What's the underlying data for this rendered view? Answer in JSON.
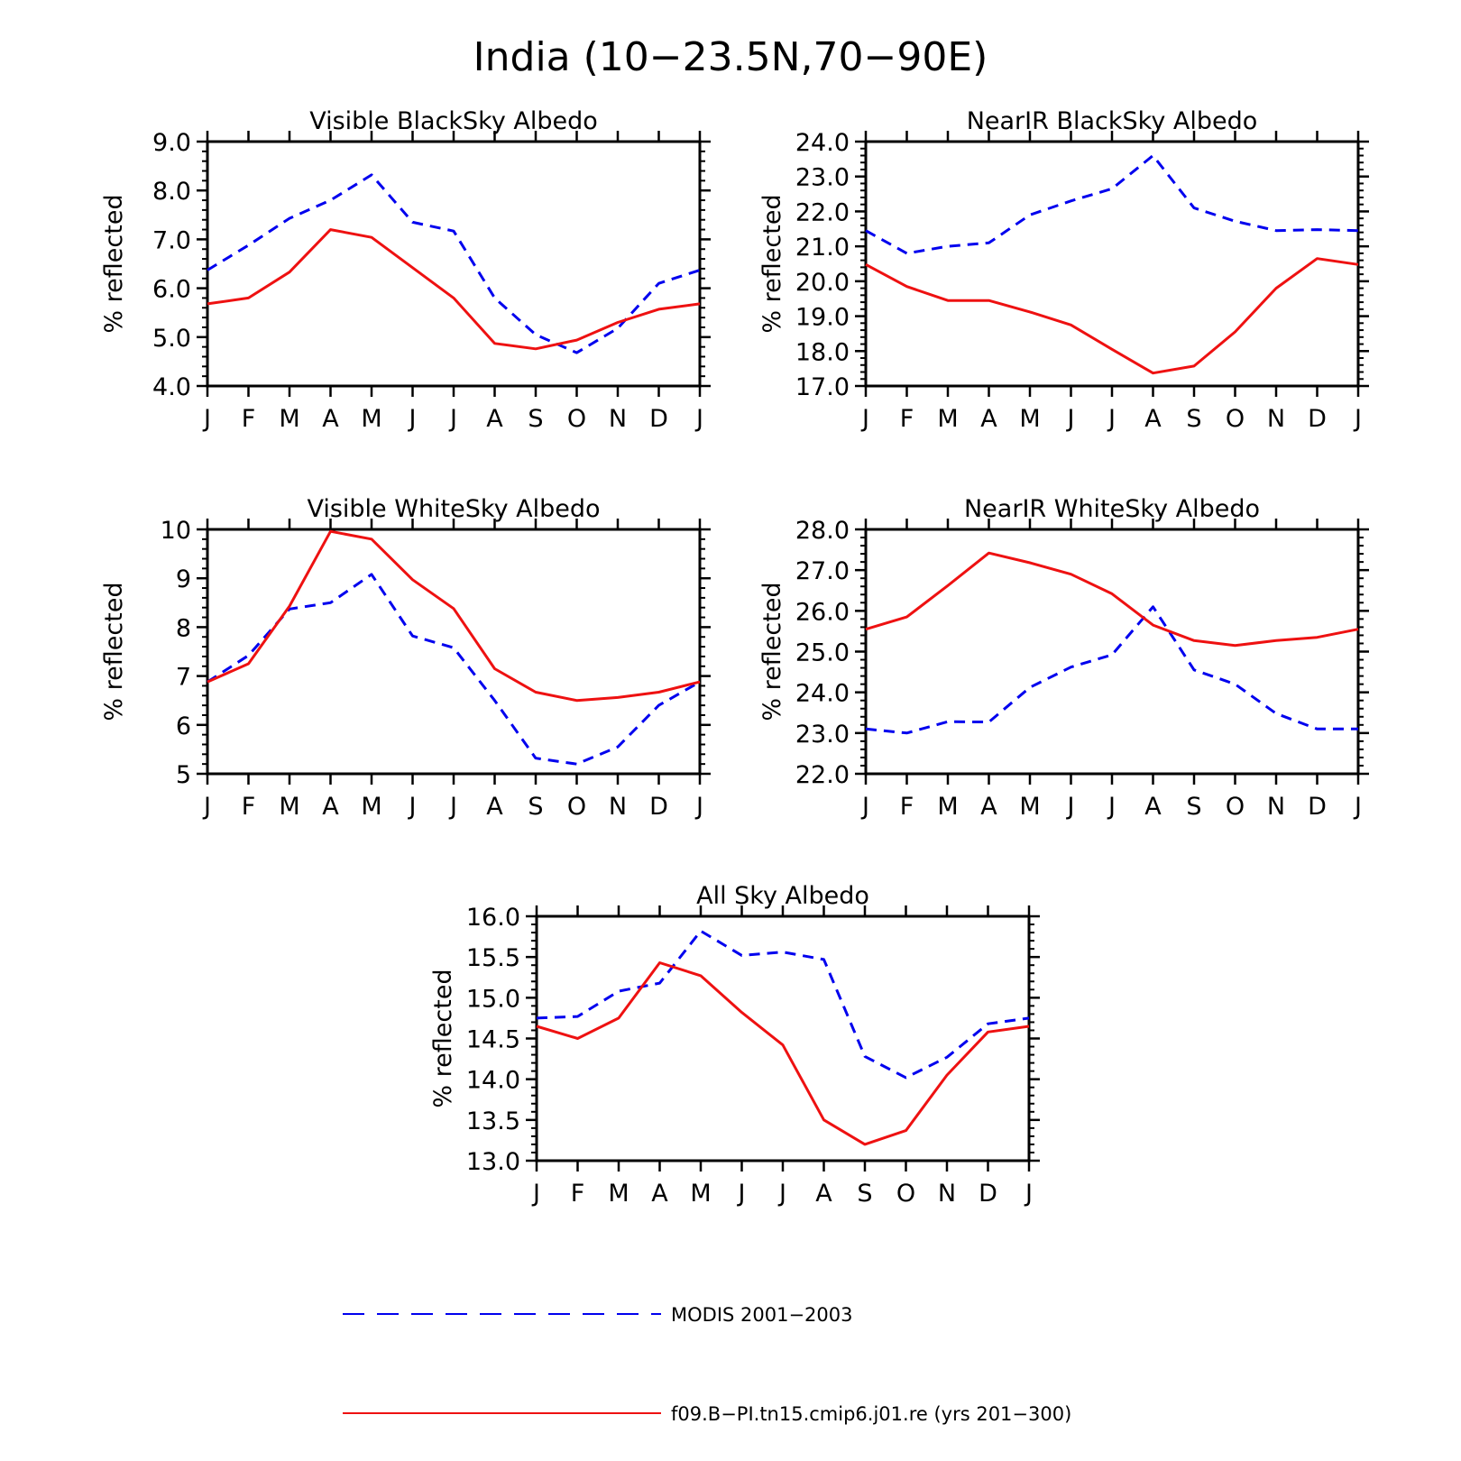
{
  "figure": {
    "title": "India (10−23.5N,70−90E)"
  },
  "series_styles": [
    {
      "color": "#0000ee",
      "dash": "dashed"
    },
    {
      "color": "#ee1111",
      "dash": "solid"
    }
  ],
  "legend": [
    {
      "label": "MODIS 2001−2003"
    },
    {
      "label": "f09.B−PI.tn15.cmip6.j01.re (yrs 201−300)"
    }
  ],
  "chart_data": [
    {
      "type": "line",
      "title": "Visible BlackSky Albedo",
      "ylabel": "% reflected",
      "categories": [
        "J",
        "F",
        "M",
        "A",
        "M",
        "J",
        "J",
        "A",
        "S",
        "O",
        "N",
        "D",
        "J"
      ],
      "ylim": [
        4.0,
        9.0
      ],
      "yticks": [
        4.0,
        5.0,
        6.0,
        7.0,
        8.0,
        9.0
      ],
      "ytick_labels": [
        "4.0",
        "5.0",
        "6.0",
        "7.0",
        "8.0",
        "9.0"
      ],
      "series": [
        {
          "values": [
            6.37,
            6.88,
            7.43,
            7.8,
            8.32,
            7.35,
            7.17,
            5.8,
            5.05,
            4.68,
            5.18,
            6.1,
            6.37
          ]
        },
        {
          "values": [
            5.68,
            5.8,
            6.33,
            7.2,
            7.04,
            6.42,
            5.8,
            4.87,
            4.76,
            4.94,
            5.3,
            5.57,
            5.68
          ]
        }
      ]
    },
    {
      "type": "line",
      "title": "NearIR BlackSky Albedo",
      "ylabel": "% reflected",
      "categories": [
        "J",
        "F",
        "M",
        "A",
        "M",
        "J",
        "J",
        "A",
        "S",
        "O",
        "N",
        "D",
        "J"
      ],
      "ylim": [
        17.0,
        24.0
      ],
      "yticks": [
        17.0,
        18.0,
        19.0,
        20.0,
        21.0,
        22.0,
        23.0,
        24.0
      ],
      "ytick_labels": [
        "17.0",
        "18.0",
        "19.0",
        "20.0",
        "21.0",
        "22.0",
        "23.0",
        "24.0"
      ],
      "series": [
        {
          "values": [
            21.45,
            20.8,
            21.0,
            21.1,
            21.9,
            22.3,
            22.65,
            23.6,
            22.1,
            21.72,
            21.45,
            21.48,
            21.45
          ]
        },
        {
          "values": [
            20.48,
            19.85,
            19.45,
            19.45,
            19.12,
            18.75,
            18.05,
            17.37,
            17.57,
            18.55,
            19.8,
            20.65,
            20.48
          ]
        }
      ]
    },
    {
      "type": "line",
      "title": "Visible WhiteSky Albedo",
      "ylabel": "% reflected",
      "categories": [
        "J",
        "F",
        "M",
        "A",
        "M",
        "J",
        "J",
        "A",
        "S",
        "O",
        "N",
        "D",
        "J"
      ],
      "ylim": [
        5,
        10
      ],
      "yticks": [
        5,
        6,
        7,
        8,
        9,
        10
      ],
      "ytick_labels": [
        "5",
        "6",
        "7",
        "8",
        "9",
        "10"
      ],
      "series": [
        {
          "values": [
            6.88,
            7.42,
            8.37,
            8.5,
            9.08,
            7.82,
            7.58,
            6.5,
            5.32,
            5.2,
            5.55,
            6.4,
            6.88
          ]
        },
        {
          "values": [
            6.88,
            7.25,
            8.43,
            9.96,
            9.8,
            8.97,
            8.38,
            7.15,
            6.67,
            6.5,
            6.56,
            6.67,
            6.88
          ]
        }
      ]
    },
    {
      "type": "line",
      "title": "NearIR WhiteSky Albedo",
      "ylabel": "% reflected",
      "categories": [
        "J",
        "F",
        "M",
        "A",
        "M",
        "J",
        "J",
        "A",
        "S",
        "O",
        "N",
        "D",
        "J"
      ],
      "ylim": [
        22.0,
        28.0
      ],
      "yticks": [
        22.0,
        23.0,
        24.0,
        25.0,
        26.0,
        27.0,
        28.0
      ],
      "ytick_labels": [
        "22.0",
        "23.0",
        "24.0",
        "25.0",
        "26.0",
        "27.0",
        "28.0"
      ],
      "series": [
        {
          "values": [
            23.1,
            23.0,
            23.28,
            23.27,
            24.12,
            24.62,
            24.92,
            26.1,
            24.55,
            24.2,
            23.48,
            23.1,
            23.1
          ]
        },
        {
          "values": [
            25.55,
            25.85,
            26.62,
            27.42,
            27.18,
            26.9,
            26.42,
            25.65,
            25.27,
            25.15,
            25.27,
            25.35,
            25.55
          ]
        }
      ]
    },
    {
      "type": "line",
      "title": "All Sky Albedo",
      "ylabel": "% reflected",
      "categories": [
        "J",
        "F",
        "M",
        "A",
        "M",
        "J",
        "J",
        "A",
        "S",
        "O",
        "N",
        "D",
        "J"
      ],
      "ylim": [
        13.0,
        16.0
      ],
      "yticks": [
        13.0,
        13.5,
        14.0,
        14.5,
        15.0,
        15.5,
        16.0
      ],
      "ytick_labels": [
        "13.0",
        "13.5",
        "14.0",
        "14.5",
        "15.0",
        "15.5",
        "16.0"
      ],
      "series": [
        {
          "values": [
            14.75,
            14.77,
            15.08,
            15.18,
            15.82,
            15.52,
            15.56,
            15.47,
            14.28,
            14.02,
            14.27,
            14.68,
            14.75
          ]
        },
        {
          "values": [
            14.65,
            14.5,
            14.75,
            15.43,
            15.27,
            14.82,
            14.42,
            13.5,
            13.2,
            13.37,
            14.05,
            14.58,
            14.65
          ]
        }
      ]
    }
  ]
}
